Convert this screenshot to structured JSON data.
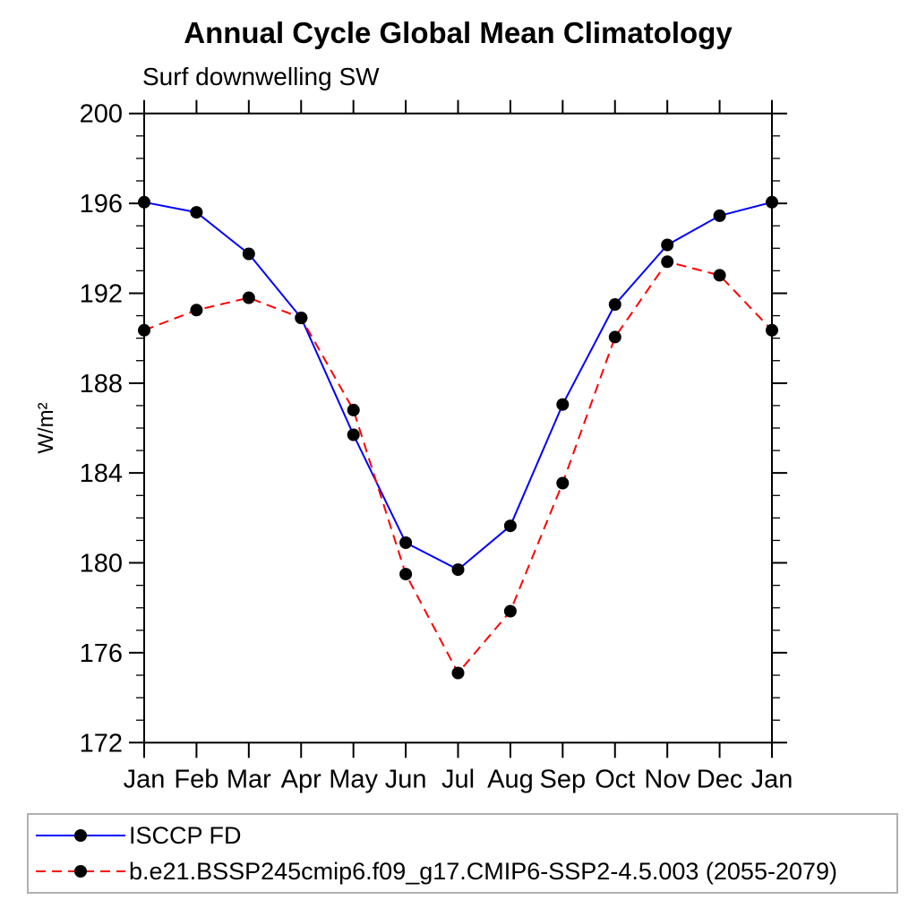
{
  "chart_data": {
    "type": "line",
    "title": "Annual Cycle Global Mean Climatology",
    "subtitle": "Surf downwelling SW",
    "ylabel": "W/m²",
    "xlabel": "",
    "ylim": [
      172,
      200
    ],
    "yticks": [
      172,
      176,
      180,
      184,
      188,
      192,
      196,
      200
    ],
    "ytick_step": 4,
    "yminor_step": 1,
    "grid": false,
    "legend_position": "bottom",
    "categories": [
      "Jan",
      "Feb",
      "Mar",
      "Apr",
      "May",
      "Jun",
      "Jul",
      "Aug",
      "Sep",
      "Oct",
      "Nov",
      "Dec",
      "Jan"
    ],
    "series": [
      {
        "name": "ISCCP FD",
        "color": "#0000ff",
        "line_style": "solid",
        "marker": "circle",
        "marker_color": "#000000",
        "values": [
          196.05,
          195.6,
          193.75,
          190.9,
          185.7,
          180.9,
          179.7,
          181.65,
          187.05,
          191.5,
          194.15,
          195.45,
          196.05
        ]
      },
      {
        "name": "b.e21.BSSP245cmip6.f09_g17.CMIP6-SSP2-4.5.003 (2055-2079)",
        "color": "#ff0000",
        "line_style": "dashed",
        "marker": "circle",
        "marker_color": "#000000",
        "values": [
          190.35,
          191.25,
          191.8,
          190.9,
          186.8,
          179.5,
          175.1,
          177.85,
          183.55,
          190.05,
          193.4,
          192.8,
          190.35
        ]
      }
    ]
  }
}
